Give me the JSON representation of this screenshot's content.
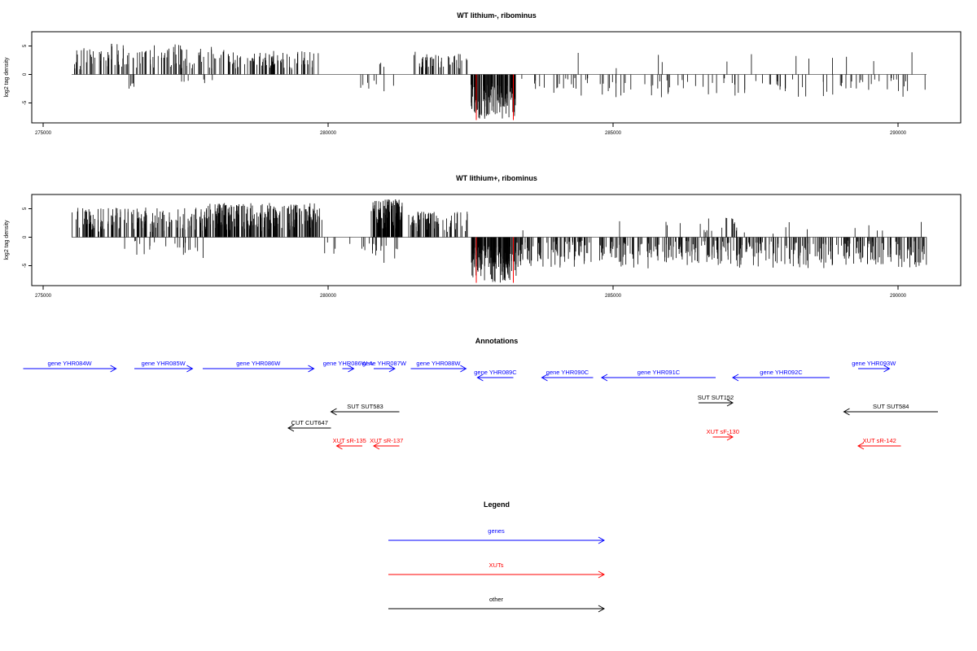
{
  "chart_data": [
    {
      "type": "bar",
      "title": "WT lithium-, ribominus",
      "ylabel": "log2 tag density",
      "xlim": [
        274800,
        291100
      ],
      "ylim": [
        -8.5,
        7.5
      ],
      "xticks": [
        275000,
        280000,
        285000,
        290000
      ],
      "xtick_labels": [
        "275000",
        "280000",
        "285000",
        "290000"
      ],
      "yticks": [
        -5,
        0,
        5
      ],
      "ytick_labels": [
        "-5",
        "0",
        "5"
      ],
      "baseline": 0,
      "highlight_color": "#ff0000",
      "regions": [
        {
          "start": 275500,
          "end": 278000,
          "min": 0.8,
          "max": 5.4,
          "n": 110,
          "seed": 11
        },
        {
          "start": 276500,
          "end": 276650,
          "min": -2.8,
          "max": -1.0,
          "n": 5,
          "seed": 12
        },
        {
          "start": 277400,
          "end": 278000,
          "min": -1.8,
          "max": -0.5,
          "n": 6,
          "seed": 13
        },
        {
          "start": 278000,
          "end": 279850,
          "min": 0.8,
          "max": 4.3,
          "n": 90,
          "seed": 14
        },
        {
          "start": 280500,
          "end": 281300,
          "min": -3.0,
          "max": -0.8,
          "n": 8,
          "seed": 15
        },
        {
          "start": 280900,
          "end": 281000,
          "min": 0.8,
          "max": 2.4,
          "n": 3,
          "seed": 16
        },
        {
          "start": 281500,
          "end": 282450,
          "min": 0.8,
          "max": 4.0,
          "n": 45,
          "seed": 17
        },
        {
          "start": 282500,
          "end": 283300,
          "min": -8.0,
          "max": -1.5,
          "n": 130,
          "seed": 18
        },
        {
          "start": 283300,
          "end": 290500,
          "min": -4.0,
          "max": -0.6,
          "n": 105,
          "seed": 19
        },
        {
          "start": 283300,
          "end": 290500,
          "min": 0.6,
          "max": 4.0,
          "n": 12,
          "seed": 20
        }
      ],
      "highlight": [
        {
          "x": 282600,
          "y": -8.0
        },
        {
          "x": 283250,
          "y": -8.0
        }
      ]
    },
    {
      "type": "bar",
      "title": "WT lithium+, ribominus",
      "ylabel": "log2 tag density",
      "xlim": [
        274800,
        291100
      ],
      "ylim": [
        -8.5,
        7.5
      ],
      "xticks": [
        275000,
        280000,
        285000,
        290000
      ],
      "xtick_labels": [
        "275000",
        "280000",
        "285000",
        "290000"
      ],
      "yticks": [
        -5,
        0,
        5
      ],
      "ytick_labels": [
        "-5",
        "0",
        "5"
      ],
      "baseline": 0,
      "highlight_color": "#ff0000",
      "regions": [
        {
          "start": 275500,
          "end": 277800,
          "min": 0.8,
          "max": 5.2,
          "n": 150,
          "seed": 31
        },
        {
          "start": 276400,
          "end": 277900,
          "min": -3.8,
          "max": -0.6,
          "n": 22,
          "seed": 32
        },
        {
          "start": 277800,
          "end": 279900,
          "min": 1.0,
          "max": 6.0,
          "n": 240,
          "seed": 33
        },
        {
          "start": 279900,
          "end": 280800,
          "min": -3.0,
          "max": -0.8,
          "n": 10,
          "seed": 34
        },
        {
          "start": 280750,
          "end": 281300,
          "min": 1.5,
          "max": 6.8,
          "n": 110,
          "seed": 35
        },
        {
          "start": 280700,
          "end": 281300,
          "min": -4.5,
          "max": -1.0,
          "n": 12,
          "seed": 36
        },
        {
          "start": 281400,
          "end": 282500,
          "min": 0.8,
          "max": 4.5,
          "n": 70,
          "seed": 37
        },
        {
          "start": 282500,
          "end": 283300,
          "min": -8.0,
          "max": -1.5,
          "n": 150,
          "seed": 38
        },
        {
          "start": 283300,
          "end": 290500,
          "min": -5.5,
          "max": -0.6,
          "n": 420,
          "seed": 39
        },
        {
          "start": 286500,
          "end": 287200,
          "min": 0.6,
          "max": 3.5,
          "n": 18,
          "seed": 40
        },
        {
          "start": 283300,
          "end": 290500,
          "min": 0.6,
          "max": 2.8,
          "n": 15,
          "seed": 41
        }
      ],
      "highlight": [
        {
          "x": 282600,
          "y": -8.0
        },
        {
          "x": 283250,
          "y": -8.0
        }
      ]
    }
  ],
  "annotations": {
    "title": "Annotations",
    "features": [
      {
        "label": "gene YHR084W",
        "type": "gene",
        "strand": "+",
        "row": 0,
        "start": 274650,
        "end": 276280
      },
      {
        "label": "gene YHR085W",
        "type": "gene",
        "strand": "+",
        "row": 0,
        "start": 276600,
        "end": 277620
      },
      {
        "label": "gene YHR086W",
        "type": "gene",
        "strand": "+",
        "row": 0,
        "start": 277800,
        "end": 279750
      },
      {
        "label": "gene YHR086W-A",
        "type": "gene",
        "strand": "+",
        "row": 0,
        "start": 280250,
        "end": 280450
      },
      {
        "label": "gene YHR087W",
        "type": "gene",
        "strand": "+",
        "row": 0,
        "start": 280800,
        "end": 281170
      },
      {
        "label": "gene YHR088W",
        "type": "gene",
        "strand": "+",
        "row": 0,
        "start": 281450,
        "end": 282420
      },
      {
        "label": "gene YHR089C",
        "type": "gene",
        "strand": "-",
        "row": 1,
        "start": 282620,
        "end": 283250
      },
      {
        "label": "gene YHR090C",
        "type": "gene",
        "strand": "-",
        "row": 1,
        "start": 283750,
        "end": 284650
      },
      {
        "label": "gene YHR091C",
        "type": "gene",
        "strand": "-",
        "row": 1,
        "start": 284800,
        "end": 286800
      },
      {
        "label": "gene YHR092C",
        "type": "gene",
        "strand": "-",
        "row": 1,
        "start": 287100,
        "end": 288800
      },
      {
        "label": "gene YHR093W",
        "type": "gene",
        "strand": "+",
        "row": 0,
        "start": 289300,
        "end": 289850
      },
      {
        "label": "SUT SUT583",
        "type": "other",
        "strand": "-",
        "row": 2,
        "start": 280050,
        "end": 281250
      },
      {
        "label": "SUT SUT152",
        "type": "other",
        "strand": "+",
        "row": 3,
        "start": 286500,
        "end": 287100
      },
      {
        "label": "SUT SUT584",
        "type": "other",
        "strand": "-",
        "row": 2,
        "start": 289050,
        "end": 290700
      },
      {
        "label": "CUT CUT647",
        "type": "other",
        "strand": "-",
        "row": 4,
        "start": 279300,
        "end": 280050
      },
      {
        "label": "XUT sR-135",
        "type": "xut",
        "strand": "-",
        "row": 6,
        "start": 280150,
        "end": 280600
      },
      {
        "label": "XUT sR-137",
        "type": "xut",
        "strand": "-",
        "row": 6,
        "start": 280800,
        "end": 281250
      },
      {
        "label": "XUT sF-130",
        "type": "xut",
        "strand": "+",
        "row": 5,
        "start": 286750,
        "end": 287100
      },
      {
        "label": "XUT sR-142",
        "type": "xut",
        "strand": "-",
        "row": 6,
        "start": 289300,
        "end": 290050
      }
    ]
  },
  "legend": {
    "title": "Legend",
    "items": [
      {
        "label": "genes",
        "color": "#0000ff"
      },
      {
        "label": "XUTs",
        "color": "#ff0000"
      },
      {
        "label": "other",
        "color": "#000000"
      }
    ]
  },
  "colors": {
    "gene": "#0000ff",
    "xut": "#ff0000",
    "other": "#000000",
    "axis": "#000000",
    "baseline": "#808080",
    "bar": "#000000"
  }
}
